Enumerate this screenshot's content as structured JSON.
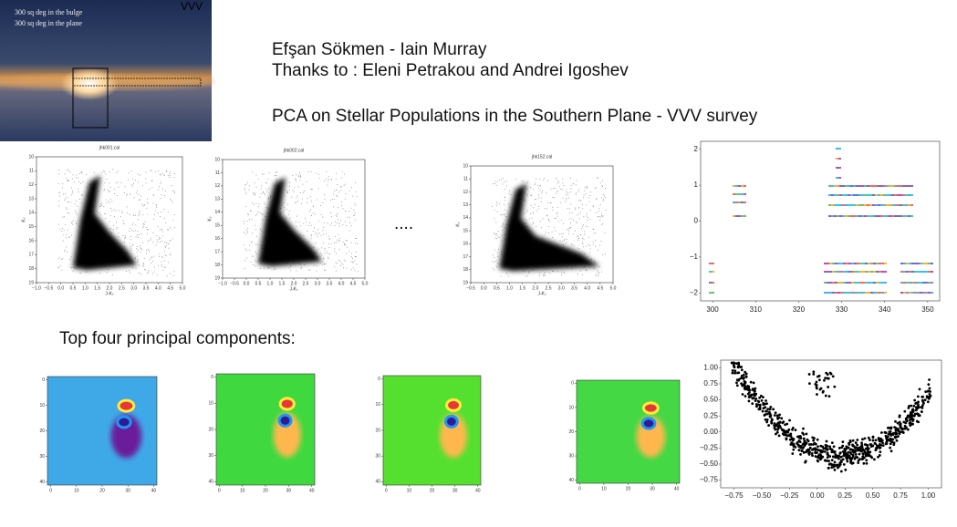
{
  "header": {
    "authors": "Efşan Sökmen - Iain Murray",
    "thanks": "Thanks to : Eleni Petrakou and Andrei Igoshev",
    "title": "PCA on Stellar Populations in the Southern Plane - VVV survey"
  },
  "sky_image": {
    "corner_label": "VVV",
    "lines": [
      "300 sq deg in the bulge",
      "300 sq deg in the plane"
    ]
  },
  "cmd_plots": [
    {
      "title": "jhk001.cal",
      "xlabel": "J-Kₛ",
      "ylabel": "Kₛ",
      "xticks": [
        "−1.0",
        "−0.5",
        "0.0",
        "0.5",
        "1.0",
        "1.5",
        "2.0",
        "2.5",
        "3.0",
        "3.5",
        "4.0",
        "4.5",
        "5.0"
      ],
      "yticks": [
        "10",
        "11",
        "12",
        "13",
        "14",
        "15",
        "16",
        "17",
        "18",
        "19"
      ]
    },
    {
      "title": "jhk002.cal",
      "xlabel": "J-Kₛ",
      "ylabel": "Kₛ",
      "xticks": [
        "−1.0",
        "−0.5",
        "0.0",
        "0.5",
        "1.0",
        "1.5",
        "2.0",
        "2.5",
        "3.0",
        "3.5",
        "4.0",
        "4.5",
        "5.0"
      ],
      "yticks": [
        "10",
        "11",
        "12",
        "13",
        "14",
        "15",
        "16",
        "17",
        "18",
        "19"
      ]
    },
    {
      "title": "jhk152.cal",
      "xlabel": "J-Kₛ",
      "ylabel": "Kₛ",
      "xticks": [
        "−0.5",
        "0.0",
        "0.5",
        "1.0",
        "1.5",
        "2.0",
        "2.5",
        "3.0",
        "3.5",
        "4.0",
        "4.5",
        "5.0"
      ],
      "yticks": [
        "10",
        "11",
        "12",
        "13",
        "14",
        "15",
        "16",
        "17",
        "18",
        "19"
      ]
    }
  ],
  "ellipsis": "....",
  "position_plot": {
    "xticks": [
      "300",
      "310",
      "320",
      "330",
      "340",
      "350"
    ],
    "yticks": [
      "2",
      "1",
      "0",
      "−1",
      "−2"
    ]
  },
  "subtitle": "Top four principal components:",
  "pc_plots": [
    {
      "xticks": [
        "0",
        "10",
        "20",
        "30",
        "40"
      ],
      "yticks": [
        "0",
        "10",
        "20",
        "30",
        "40"
      ]
    },
    {
      "xticks": [
        "0",
        "10",
        "20",
        "30",
        "40"
      ],
      "yticks": [
        "0",
        "10",
        "20",
        "30",
        "40"
      ]
    },
    {
      "xticks": [
        "0",
        "10",
        "20",
        "30",
        "40"
      ],
      "yticks": [
        "0",
        "10",
        "20",
        "30",
        "40"
      ]
    },
    {
      "xticks": [
        "0",
        "10",
        "20",
        "30",
        "40"
      ],
      "yticks": [
        "0",
        "10",
        "20",
        "30",
        "40"
      ]
    }
  ],
  "scatter_plot": {
    "xticks": [
      "−0.75",
      "−0.50",
      "−0.25",
      "0.00",
      "0.25",
      "0.50",
      "0.75",
      "1.00"
    ],
    "yticks": [
      "1.00",
      "0.75",
      "0.50",
      "0.25",
      "0.00",
      "−0.25",
      "−0.50",
      "−0.75"
    ]
  }
}
